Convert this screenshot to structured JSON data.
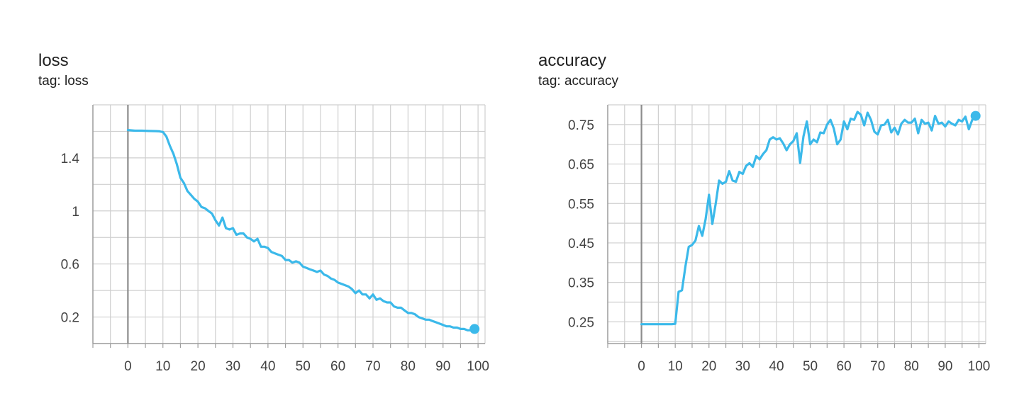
{
  "colors": {
    "series": "#3bb9ea",
    "grid": "#cfcfcf",
    "axis": "#9e9e9e",
    "zero_line": "#8c8c8c"
  },
  "chart_data": [
    {
      "type": "line",
      "title": "loss",
      "subtitle": "tag: loss",
      "xlabel": "",
      "ylabel": "",
      "xlim": [
        -10,
        102
      ],
      "ylim": [
        0,
        1.8
      ],
      "x_ticks": [
        0,
        10,
        20,
        30,
        40,
        50,
        60,
        70,
        80,
        90,
        100
      ],
      "y_ticks": [
        0.2,
        0.6,
        1,
        1.4
      ],
      "y_tick_labels": [
        "0.2",
        "0.6",
        "1",
        "1.4"
      ],
      "grid": true,
      "series": [
        {
          "x": [
            0,
            2,
            4,
            6,
            8,
            9,
            10,
            11,
            12,
            13,
            14,
            15,
            16,
            17,
            18,
            19,
            20,
            21,
            22,
            23,
            24,
            25,
            26,
            27,
            28,
            29,
            30,
            31,
            32,
            33,
            34,
            35,
            36,
            37,
            38,
            39,
            40,
            41,
            42,
            43,
            44,
            45,
            46,
            47,
            48,
            49,
            50,
            51,
            52,
            53,
            54,
            55,
            56,
            57,
            58,
            59,
            60,
            61,
            62,
            63,
            64,
            65,
            66,
            67,
            68,
            69,
            70,
            71,
            72,
            73,
            74,
            75,
            76,
            77,
            78,
            79,
            80,
            81,
            82,
            83,
            84,
            85,
            86,
            87,
            88,
            89,
            90,
            91,
            92,
            93,
            94,
            95,
            96,
            97,
            98,
            99
          ],
          "y": [
            1.61,
            1.605,
            1.605,
            1.603,
            1.602,
            1.6,
            1.595,
            1.56,
            1.49,
            1.43,
            1.35,
            1.25,
            1.21,
            1.15,
            1.12,
            1.09,
            1.07,
            1.03,
            1.02,
            1.0,
            0.98,
            0.93,
            0.89,
            0.95,
            0.87,
            0.86,
            0.87,
            0.82,
            0.83,
            0.83,
            0.8,
            0.79,
            0.77,
            0.79,
            0.73,
            0.73,
            0.72,
            0.69,
            0.68,
            0.67,
            0.66,
            0.63,
            0.63,
            0.61,
            0.62,
            0.61,
            0.58,
            0.57,
            0.56,
            0.55,
            0.54,
            0.55,
            0.52,
            0.51,
            0.49,
            0.48,
            0.46,
            0.45,
            0.44,
            0.43,
            0.41,
            0.38,
            0.4,
            0.37,
            0.37,
            0.34,
            0.37,
            0.33,
            0.34,
            0.32,
            0.31,
            0.31,
            0.28,
            0.27,
            0.27,
            0.25,
            0.23,
            0.23,
            0.22,
            0.2,
            0.19,
            0.18,
            0.18,
            0.17,
            0.16,
            0.15,
            0.14,
            0.13,
            0.13,
            0.12,
            0.12,
            0.11,
            0.11,
            0.1,
            0.1,
            0.11
          ]
        }
      ]
    },
    {
      "type": "line",
      "title": "accuracy",
      "subtitle": "tag: accuracy",
      "xlabel": "",
      "ylabel": "",
      "xlim": [
        -10,
        102
      ],
      "ylim": [
        0.195,
        0.8
      ],
      "x_ticks": [
        0,
        10,
        20,
        30,
        40,
        50,
        60,
        70,
        80,
        90,
        100
      ],
      "y_ticks": [
        0.25,
        0.35,
        0.45,
        0.55,
        0.65,
        0.75
      ],
      "y_tick_labels": [
        "0.25",
        "0.35",
        "0.45",
        "0.55",
        "0.65",
        "0.75"
      ],
      "grid": true,
      "series": [
        {
          "x": [
            0,
            2,
            4,
            6,
            8,
            9,
            10,
            11,
            12,
            13,
            14,
            15,
            16,
            17,
            18,
            19,
            20,
            21,
            22,
            23,
            24,
            25,
            26,
            27,
            28,
            29,
            30,
            31,
            32,
            33,
            34,
            35,
            36,
            37,
            38,
            39,
            40,
            41,
            42,
            43,
            44,
            45,
            46,
            47,
            48,
            49,
            50,
            51,
            52,
            53,
            54,
            55,
            56,
            57,
            58,
            59,
            60,
            61,
            62,
            63,
            64,
            65,
            66,
            67,
            68,
            69,
            70,
            71,
            72,
            73,
            74,
            75,
            76,
            77,
            78,
            79,
            80,
            81,
            82,
            83,
            84,
            85,
            86,
            87,
            88,
            89,
            90,
            91,
            92,
            93,
            94,
            95,
            96,
            97,
            98,
            99
          ],
          "y": [
            0.244,
            0.244,
            0.244,
            0.244,
            0.244,
            0.244,
            0.245,
            0.326,
            0.33,
            0.39,
            0.44,
            0.445,
            0.456,
            0.493,
            0.468,
            0.51,
            0.572,
            0.498,
            0.55,
            0.608,
            0.6,
            0.605,
            0.632,
            0.608,
            0.605,
            0.63,
            0.625,
            0.645,
            0.652,
            0.643,
            0.67,
            0.662,
            0.675,
            0.685,
            0.712,
            0.718,
            0.712,
            0.715,
            0.702,
            0.685,
            0.7,
            0.708,
            0.728,
            0.653,
            0.72,
            0.758,
            0.7,
            0.712,
            0.705,
            0.73,
            0.728,
            0.75,
            0.762,
            0.74,
            0.7,
            0.712,
            0.758,
            0.738,
            0.765,
            0.762,
            0.782,
            0.775,
            0.748,
            0.78,
            0.762,
            0.732,
            0.725,
            0.748,
            0.75,
            0.762,
            0.73,
            0.742,
            0.725,
            0.752,
            0.762,
            0.755,
            0.755,
            0.765,
            0.728,
            0.762,
            0.752,
            0.755,
            0.735,
            0.772,
            0.752,
            0.755,
            0.745,
            0.758,
            0.752,
            0.748,
            0.762,
            0.758,
            0.77,
            0.738,
            0.762,
            0.772
          ]
        }
      ]
    }
  ]
}
